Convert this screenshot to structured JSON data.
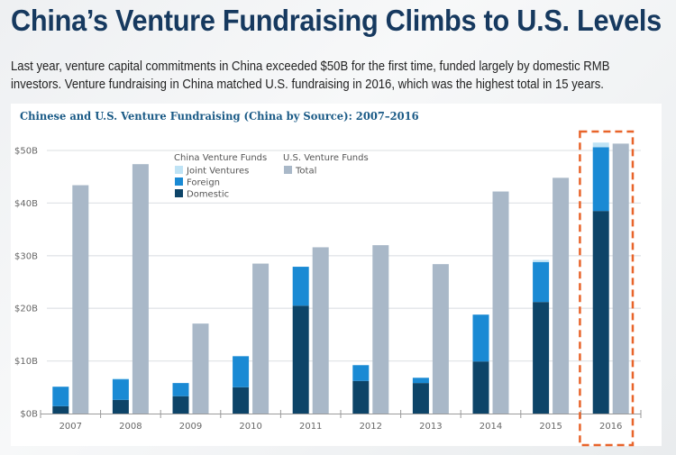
{
  "headline": "China’s Venture Fundraising Climbs to U.S. Levels",
  "subtitle_lines": [
    "Last year, venture capital commitments in China exceeded $50B for the first time, funded largely by domestic RMB",
    "investors. Venture fundraising in China matched U.S. fundraising in 2016, which was the highest total in 15 years."
  ],
  "colors": {
    "joint_ventures": "#bfe3f5",
    "foreign": "#1a8ad4",
    "domestic": "#0d4468",
    "us_total": "#a9b8c8",
    "highlight_box": "#e8642a",
    "title": "#16395f",
    "chart_title": "#1a5a86"
  },
  "chart_data": {
    "type": "bar",
    "title": "Chinese and U.S. Venture Fundraising (China by Source): 2007–2016",
    "xlabel": "",
    "ylabel": "",
    "ylim": [
      0,
      50
    ],
    "yticks": [
      0,
      10,
      20,
      30,
      40,
      50
    ],
    "ytick_labels": [
      "$0B",
      "$10B",
      "$20B",
      "$30B",
      "$40B",
      "$50B"
    ],
    "grid": true,
    "categories": [
      "2007",
      "2008",
      "2009",
      "2010",
      "2011",
      "2012",
      "2013",
      "2014",
      "2015",
      "2016"
    ],
    "series": [
      {
        "name": "Domestic",
        "group": "China Venture Funds",
        "stack": "china",
        "values": [
          1.4,
          2.6,
          3.3,
          5.0,
          20.5,
          6.2,
          5.8,
          9.9,
          21.2,
          38.5
        ]
      },
      {
        "name": "Foreign",
        "group": "China Venture Funds",
        "stack": "china",
        "values": [
          3.7,
          3.9,
          2.5,
          5.9,
          7.4,
          3.0,
          1.0,
          8.9,
          7.6,
          12.1
        ]
      },
      {
        "name": "Joint Ventures",
        "group": "China Venture Funds",
        "stack": "china",
        "values": [
          0.0,
          0.2,
          0.0,
          0.0,
          0.0,
          0.0,
          0.0,
          0.0,
          0.4,
          0.9
        ]
      },
      {
        "name": "Total",
        "group": "U.S. Venture Funds",
        "stack": "us",
        "values": [
          43.4,
          47.4,
          17.1,
          28.5,
          31.6,
          32.0,
          28.4,
          42.2,
          44.8,
          51.3
        ]
      }
    ],
    "legend": {
      "placement": "top-center",
      "groups": [
        {
          "title": "China Venture Funds",
          "items": [
            "Joint Ventures",
            "Foreign",
            "Domestic"
          ]
        },
        {
          "title": "U.S. Venture Funds",
          "items": [
            "Total"
          ]
        }
      ]
    },
    "annotations": [
      {
        "type": "dashed-highlight-box",
        "category": "2016"
      }
    ]
  }
}
